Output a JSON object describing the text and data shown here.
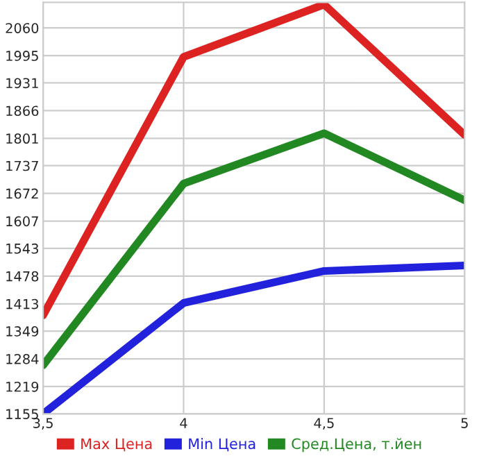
{
  "chart_data": {
    "type": "line",
    "x": [
      3.5,
      4,
      4.5,
      5
    ],
    "series": [
      {
        "name": "Max Цена",
        "color": "#dd2222",
        "values": [
          1386,
          1992,
          2115,
          1809
        ]
      },
      {
        "name": "Min Цена",
        "color": "#2222dd",
        "values": [
          1155,
          1415,
          1490,
          1503
        ]
      },
      {
        "name": "Сред.Цена, т.йен",
        "color": "#228822",
        "values": [
          1269,
          1695,
          1813,
          1656
        ]
      }
    ],
    "xlim": [
      3.5,
      5
    ],
    "xticks": [
      {
        "value": 3.5,
        "label": "3,5"
      },
      4,
      {
        "value": 4.5,
        "label": "4,5"
      },
      5
    ],
    "ylim": [
      1155,
      2120
    ],
    "yticks": [
      1155,
      1219,
      1284,
      1349,
      1413,
      1478,
      1543,
      1607,
      1672,
      1737,
      1801,
      1866,
      1931,
      1995,
      2060
    ],
    "grid": true,
    "legend": "bottom",
    "marker": "none",
    "line_style": "solid"
  }
}
